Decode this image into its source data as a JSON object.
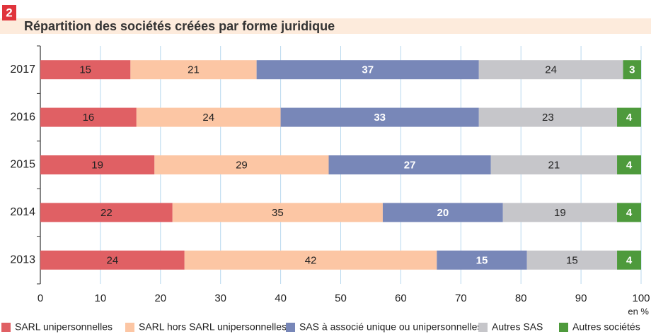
{
  "chart_data": {
    "type": "stacked_barh",
    "badge": "2",
    "title": "Répartition des sociétés créées par forme juridique",
    "categories": [
      "2017",
      "2016",
      "2015",
      "2014",
      "2013"
    ],
    "series": [
      {
        "name": "SARL unipersonnelles",
        "color": "#e06064",
        "label_color": "#222222",
        "values": [
          15,
          16,
          19,
          22,
          24
        ]
      },
      {
        "name": "SARL hors SARL unipersonnelles",
        "color": "#fcc6a4",
        "label_color": "#222222",
        "values": [
          21,
          24,
          29,
          35,
          42
        ]
      },
      {
        "name": "SAS à associé unique ou unipersonnelles",
        "color": "#7887b8",
        "label_color": "#ffffff",
        "values": [
          37,
          33,
          27,
          20,
          15
        ]
      },
      {
        "name": "Autres SAS",
        "color": "#c6c6ca",
        "label_color": "#222222",
        "values": [
          24,
          23,
          21,
          19,
          15
        ]
      },
      {
        "name": "Autres sociétés",
        "color": "#4e9a3c",
        "label_color": "#ffffff",
        "values": [
          3,
          4,
          4,
          4,
          4
        ]
      }
    ],
    "xlim": [
      0,
      100
    ],
    "xticks": [
      0,
      10,
      20,
      30,
      40,
      50,
      60,
      70,
      80,
      90,
      100
    ],
    "unit": "en %",
    "grid": true
  }
}
